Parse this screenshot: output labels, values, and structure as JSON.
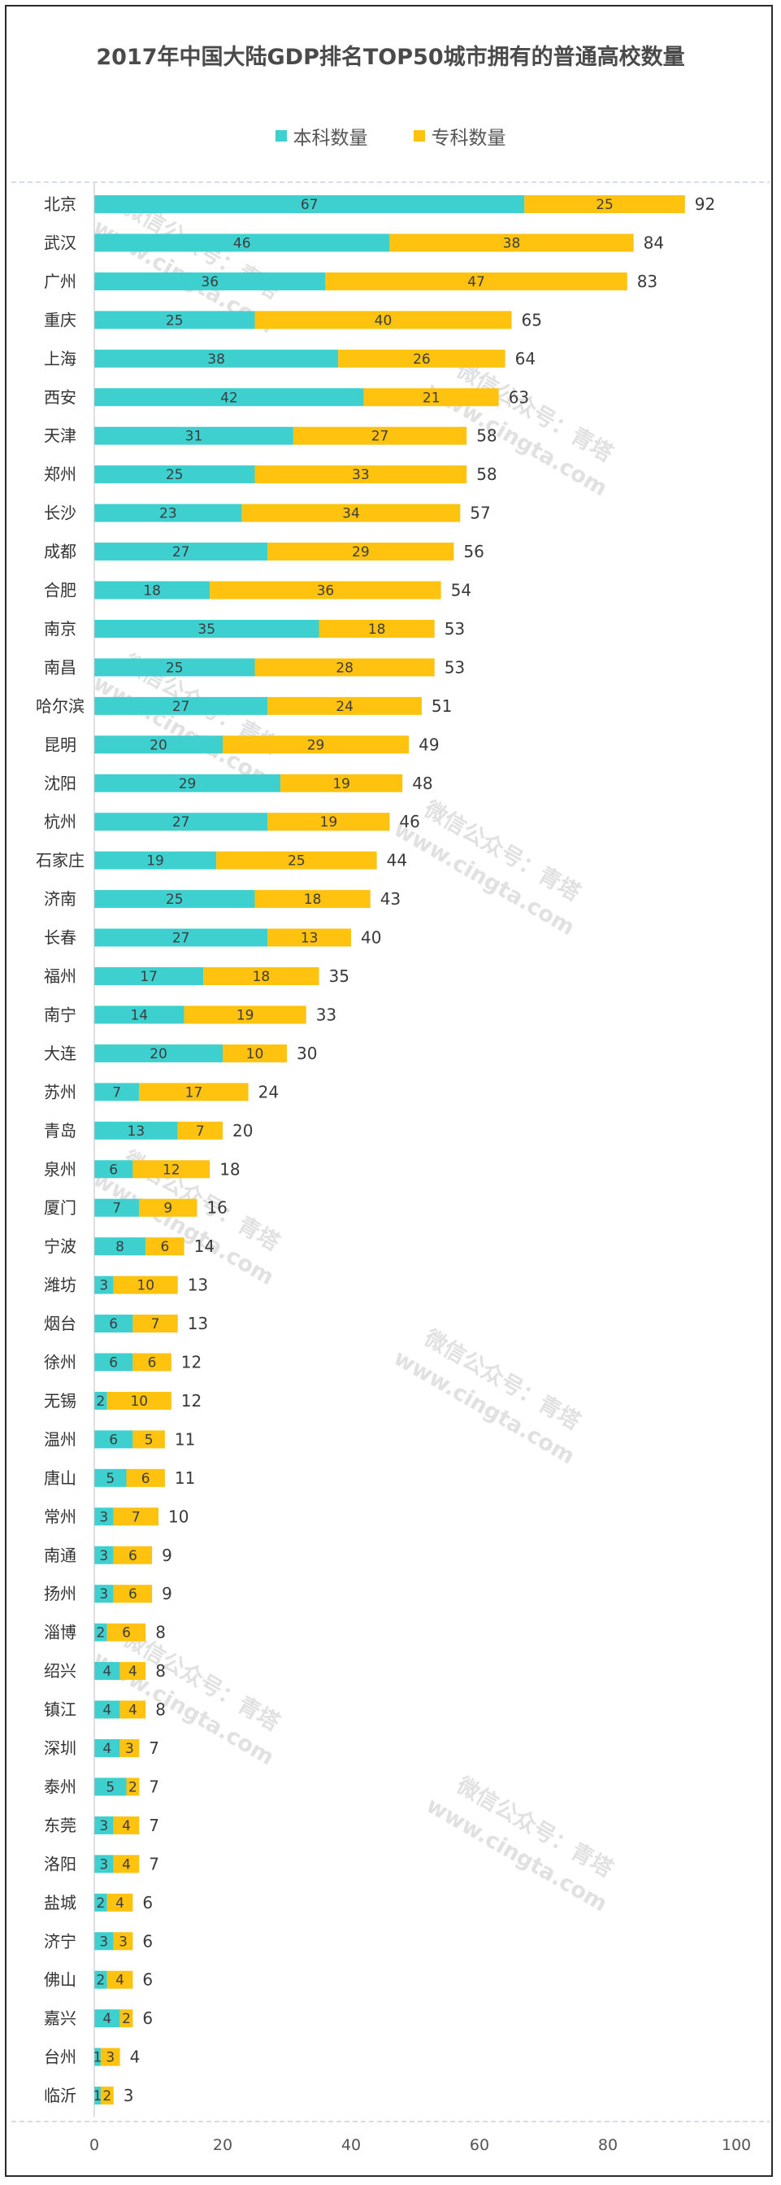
{
  "chart_data": {
    "type": "bar",
    "orientation": "horizontal",
    "stacked": true,
    "title": "2017年中国大陆GDP排名TOP50城市拥有的普通高校数量",
    "xlabel": "",
    "ylabel": "",
    "xlim": [
      0,
      100
    ],
    "x_ticks": [
      "0",
      "20",
      "40",
      "60",
      "80",
      "100"
    ],
    "grid": false,
    "legend_position": "top",
    "categories": [
      "北京",
      "武汉",
      "广州",
      "重庆",
      "上海",
      "西安",
      "天津",
      "郑州",
      "长沙",
      "成都",
      "合肥",
      "南京",
      "南昌",
      "哈尔滨",
      "昆明",
      "沈阳",
      "杭州",
      "石家庄",
      "济南",
      "长春",
      "福州",
      "南宁",
      "大连",
      "苏州",
      "青岛",
      "泉州",
      "厦门",
      "宁波",
      "潍坊",
      "烟台",
      "徐州",
      "无锡",
      "温州",
      "唐山",
      "常州",
      "南通",
      "扬州",
      "淄博",
      "绍兴",
      "镇江",
      "深圳",
      "泰州",
      "东莞",
      "洛阳",
      "盐城",
      "济宁",
      "佛山",
      "嘉兴",
      "台州",
      "临沂"
    ],
    "series": [
      {
        "name": "本科数量",
        "color": "#3ecfcf",
        "values": [
          67,
          46,
          36,
          25,
          38,
          42,
          31,
          25,
          23,
          27,
          18,
          35,
          25,
          27,
          20,
          29,
          27,
          19,
          25,
          27,
          17,
          14,
          20,
          7,
          13,
          6,
          7,
          8,
          3,
          6,
          6,
          2,
          6,
          5,
          3,
          3,
          3,
          2,
          4,
          4,
          4,
          5,
          3,
          3,
          2,
          3,
          2,
          4,
          1,
          1
        ]
      },
      {
        "name": "专科数量",
        "color": "#ffc20e",
        "values": [
          25,
          38,
          47,
          40,
          26,
          21,
          27,
          33,
          34,
          29,
          36,
          18,
          28,
          24,
          29,
          19,
          19,
          25,
          18,
          13,
          18,
          19,
          10,
          17,
          7,
          12,
          9,
          6,
          10,
          7,
          6,
          10,
          5,
          6,
          7,
          6,
          6,
          6,
          4,
          4,
          3,
          2,
          4,
          4,
          4,
          3,
          4,
          2,
          3,
          2
        ]
      }
    ],
    "totals": [
      92,
      84,
      83,
      65,
      64,
      63,
      58,
      58,
      57,
      56,
      54,
      53,
      53,
      51,
      49,
      48,
      46,
      44,
      43,
      40,
      35,
      33,
      30,
      24,
      20,
      18,
      16,
      14,
      13,
      13,
      12,
      12,
      11,
      11,
      10,
      9,
      9,
      8,
      8,
      8,
      7,
      7,
      7,
      7,
      6,
      6,
      6,
      6,
      4,
      3
    ]
  },
  "watermark": {
    "line1": "微信公众号：青塔",
    "line2": "www.cingta.com"
  }
}
